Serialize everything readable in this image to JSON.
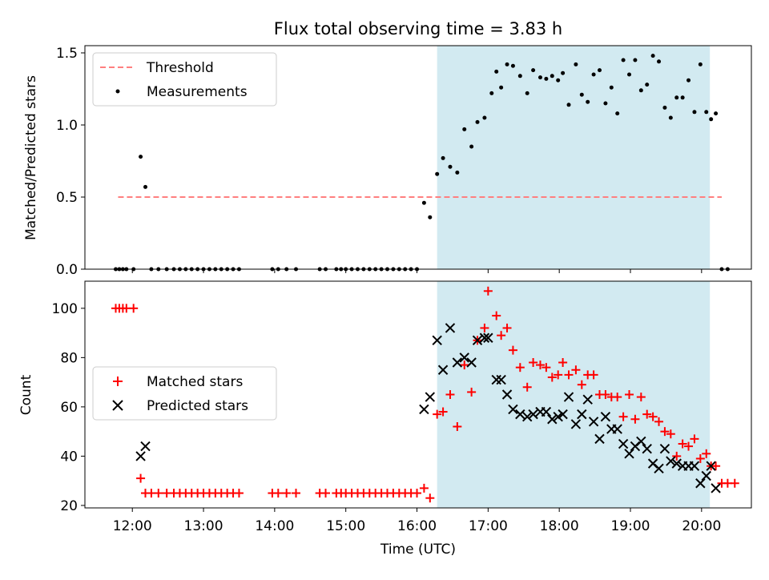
{
  "chart_data": [
    {
      "type": "scatter",
      "title": "Flux total observing time = 3.83 h",
      "xlabel": "",
      "ylabel": "Matched/Predicted stars",
      "xlim": [
        "11:20",
        "20:42"
      ],
      "ylim": [
        0,
        1.55
      ],
      "yticks": [
        "0.0",
        "0.5",
        "1.0",
        "1.5"
      ],
      "shaded_span": [
        "16:17",
        "20:07"
      ],
      "shaded_color": "#add8e6",
      "legend": {
        "placement": "upper-left",
        "entries": [
          "Threshold",
          "Measurements"
        ]
      },
      "threshold": {
        "name": "Threshold",
        "value": 0.5,
        "x_range": [
          "11:48",
          "20:17"
        ],
        "color": "#ff7f7f"
      },
      "series": [
        {
          "name": "Measurements",
          "color": "#000000",
          "points": [
            [
              "11:46",
              0
            ],
            [
              "11:49",
              0
            ],
            [
              "11:52",
              0
            ],
            [
              "11:55",
              0
            ],
            [
              "12:01",
              0
            ],
            [
              "12:07",
              0.78
            ],
            [
              "12:11",
              0.57
            ],
            [
              "12:16",
              0
            ],
            [
              "12:22",
              0
            ],
            [
              "12:29",
              0
            ],
            [
              "12:35",
              0
            ],
            [
              "12:40",
              0
            ],
            [
              "12:45",
              0
            ],
            [
              "12:50",
              0
            ],
            [
              "12:55",
              0
            ],
            [
              "13:00",
              0
            ],
            [
              "13:05",
              0
            ],
            [
              "13:10",
              0
            ],
            [
              "13:15",
              0
            ],
            [
              "13:20",
              0
            ],
            [
              "13:25",
              0
            ],
            [
              "13:30",
              0
            ],
            [
              "13:58",
              0
            ],
            [
              "14:03",
              0
            ],
            [
              "14:10",
              0
            ],
            [
              "14:18",
              0
            ],
            [
              "14:38",
              0
            ],
            [
              "14:43",
              0
            ],
            [
              "14:52",
              0
            ],
            [
              "14:56",
              0
            ],
            [
              "15:00",
              0
            ],
            [
              "15:05",
              0
            ],
            [
              "15:10",
              0
            ],
            [
              "15:15",
              0
            ],
            [
              "15:20",
              0
            ],
            [
              "15:25",
              0
            ],
            [
              "15:30",
              0
            ],
            [
              "15:35",
              0
            ],
            [
              "15:40",
              0
            ],
            [
              "15:45",
              0
            ],
            [
              "15:50",
              0
            ],
            [
              "15:55",
              0
            ],
            [
              "16:00",
              0
            ],
            [
              "16:06",
              0.46
            ],
            [
              "16:11",
              0.36
            ],
            [
              "16:17",
              0.66
            ],
            [
              "16:22",
              0.77
            ],
            [
              "16:28",
              0.71
            ],
            [
              "16:34",
              0.67
            ],
            [
              "16:40",
              0.97
            ],
            [
              "16:46",
              0.85
            ],
            [
              "16:51",
              1.02
            ],
            [
              "16:57",
              1.05
            ],
            [
              "17:03",
              1.22
            ],
            [
              "17:07",
              1.37
            ],
            [
              "17:11",
              1.26
            ],
            [
              "17:16",
              1.42
            ],
            [
              "17:21",
              1.41
            ],
            [
              "17:27",
              1.34
            ],
            [
              "17:33",
              1.22
            ],
            [
              "17:38",
              1.38
            ],
            [
              "17:44",
              1.33
            ],
            [
              "17:49",
              1.32
            ],
            [
              "17:54",
              1.34
            ],
            [
              "17:59",
              1.31
            ],
            [
              "18:03",
              1.36
            ],
            [
              "18:08",
              1.14
            ],
            [
              "18:14",
              1.42
            ],
            [
              "18:19",
              1.21
            ],
            [
              "18:24",
              1.16
            ],
            [
              "18:29",
              1.35
            ],
            [
              "18:34",
              1.38
            ],
            [
              "18:39",
              1.15
            ],
            [
              "18:44",
              1.26
            ],
            [
              "18:49",
              1.08
            ],
            [
              "18:54",
              1.45
            ],
            [
              "18:59",
              1.35
            ],
            [
              "19:04",
              1.45
            ],
            [
              "19:09",
              1.24
            ],
            [
              "19:14",
              1.28
            ],
            [
              "19:19",
              1.48
            ],
            [
              "19:24",
              1.44
            ],
            [
              "19:29",
              1.12
            ],
            [
              "19:34",
              1.05
            ],
            [
              "19:39",
              1.19
            ],
            [
              "19:44",
              1.19
            ],
            [
              "19:49",
              1.31
            ],
            [
              "19:54",
              1.09
            ],
            [
              "19:59",
              1.42
            ],
            [
              "20:04",
              1.09
            ],
            [
              "20:08",
              1.04
            ],
            [
              "20:12",
              1.08
            ],
            [
              "20:17",
              0
            ],
            [
              "20:22",
              0
            ]
          ]
        }
      ]
    },
    {
      "type": "scatter",
      "title": "",
      "xlabel": "Time (UTC)",
      "ylabel": "Count",
      "xlim": [
        "11:20",
        "20:42"
      ],
      "ylim": [
        19,
        111
      ],
      "yticks": [
        "20",
        "40",
        "60",
        "80",
        "100"
      ],
      "xticks": [
        "12:00",
        "13:00",
        "14:00",
        "15:00",
        "16:00",
        "17:00",
        "18:00",
        "19:00",
        "20:00"
      ],
      "shaded_span": [
        "16:17",
        "20:07"
      ],
      "shaded_color": "#add8e6",
      "legend": {
        "placement": "center-left",
        "entries": [
          "Matched stars",
          "Predicted stars"
        ]
      },
      "series": [
        {
          "name": "Matched stars",
          "marker": "+",
          "color": "#ff0000",
          "points": [
            [
              "11:46",
              100
            ],
            [
              "11:49",
              100
            ],
            [
              "11:52",
              100
            ],
            [
              "11:55",
              100
            ],
            [
              "12:01",
              100
            ],
            [
              "12:07",
              31
            ],
            [
              "12:11",
              25
            ],
            [
              "12:16",
              25
            ],
            [
              "12:22",
              25
            ],
            [
              "12:29",
              25
            ],
            [
              "12:35",
              25
            ],
            [
              "12:40",
              25
            ],
            [
              "12:45",
              25
            ],
            [
              "12:50",
              25
            ],
            [
              "12:55",
              25
            ],
            [
              "13:00",
              25
            ],
            [
              "13:05",
              25
            ],
            [
              "13:10",
              25
            ],
            [
              "13:15",
              25
            ],
            [
              "13:20",
              25
            ],
            [
              "13:25",
              25
            ],
            [
              "13:30",
              25
            ],
            [
              "13:58",
              25
            ],
            [
              "14:03",
              25
            ],
            [
              "14:10",
              25
            ],
            [
              "14:18",
              25
            ],
            [
              "14:38",
              25
            ],
            [
              "14:43",
              25
            ],
            [
              "14:52",
              25
            ],
            [
              "14:56",
              25
            ],
            [
              "15:00",
              25
            ],
            [
              "15:05",
              25
            ],
            [
              "15:10",
              25
            ],
            [
              "15:15",
              25
            ],
            [
              "15:20",
              25
            ],
            [
              "15:25",
              25
            ],
            [
              "15:30",
              25
            ],
            [
              "15:35",
              25
            ],
            [
              "15:40",
              25
            ],
            [
              "15:45",
              25
            ],
            [
              "15:50",
              25
            ],
            [
              "15:55",
              25
            ],
            [
              "16:00",
              25
            ],
            [
              "16:06",
              27
            ],
            [
              "16:11",
              23
            ],
            [
              "16:17",
              57
            ],
            [
              "16:22",
              58
            ],
            [
              "16:28",
              65
            ],
            [
              "16:34",
              52
            ],
            [
              "16:40",
              77
            ],
            [
              "16:46",
              66
            ],
            [
              "16:51",
              87
            ],
            [
              "16:57",
              92
            ],
            [
              "17:00",
              107
            ],
            [
              "17:07",
              97
            ],
            [
              "17:11",
              89
            ],
            [
              "17:16",
              92
            ],
            [
              "17:21",
              83
            ],
            [
              "17:27",
              76
            ],
            [
              "17:33",
              68
            ],
            [
              "17:38",
              78
            ],
            [
              "17:44",
              77
            ],
            [
              "17:49",
              76
            ],
            [
              "17:54",
              72
            ],
            [
              "17:59",
              73
            ],
            [
              "18:03",
              78
            ],
            [
              "18:08",
              73
            ],
            [
              "18:14",
              75
            ],
            [
              "18:19",
              69
            ],
            [
              "18:24",
              73
            ],
            [
              "18:29",
              73
            ],
            [
              "18:34",
              65
            ],
            [
              "18:39",
              65
            ],
            [
              "18:44",
              64
            ],
            [
              "18:49",
              64
            ],
            [
              "18:54",
              56
            ],
            [
              "18:59",
              65
            ],
            [
              "19:04",
              55
            ],
            [
              "19:09",
              64
            ],
            [
              "19:14",
              57
            ],
            [
              "19:19",
              56
            ],
            [
              "19:24",
              54
            ],
            [
              "19:29",
              50
            ],
            [
              "19:34",
              49
            ],
            [
              "19:39",
              40
            ],
            [
              "19:44",
              45
            ],
            [
              "19:49",
              44
            ],
            [
              "19:54",
              47
            ],
            [
              "19:59",
              39
            ],
            [
              "20:04",
              41
            ],
            [
              "20:08",
              36
            ],
            [
              "20:12",
              36
            ],
            [
              "20:17",
              29
            ],
            [
              "20:22",
              29
            ],
            [
              "20:28",
              29
            ]
          ]
        },
        {
          "name": "Predicted stars",
          "marker": "x",
          "color": "#000000",
          "points": [
            [
              "12:07",
              40
            ],
            [
              "12:11",
              44
            ],
            [
              "16:06",
              59
            ],
            [
              "16:11",
              64
            ],
            [
              "16:17",
              87
            ],
            [
              "16:22",
              75
            ],
            [
              "16:28",
              92
            ],
            [
              "16:34",
              78
            ],
            [
              "16:40",
              80
            ],
            [
              "16:46",
              78
            ],
            [
              "16:51",
              87
            ],
            [
              "16:57",
              88
            ],
            [
              "17:00",
              88
            ],
            [
              "17:07",
              71
            ],
            [
              "17:11",
              71
            ],
            [
              "17:16",
              65
            ],
            [
              "17:21",
              59
            ],
            [
              "17:27",
              57
            ],
            [
              "17:33",
              56
            ],
            [
              "17:38",
              57
            ],
            [
              "17:44",
              58
            ],
            [
              "17:49",
              58
            ],
            [
              "17:54",
              55
            ],
            [
              "17:59",
              56
            ],
            [
              "18:03",
              57
            ],
            [
              "18:08",
              64
            ],
            [
              "18:14",
              53
            ],
            [
              "18:19",
              57
            ],
            [
              "18:24",
              63
            ],
            [
              "18:29",
              54
            ],
            [
              "18:34",
              47
            ],
            [
              "18:39",
              56
            ],
            [
              "18:44",
              51
            ],
            [
              "18:49",
              51
            ],
            [
              "18:54",
              45
            ],
            [
              "18:59",
              41
            ],
            [
              "19:04",
              44
            ],
            [
              "19:09",
              46
            ],
            [
              "19:14",
              43
            ],
            [
              "19:19",
              37
            ],
            [
              "19:24",
              35
            ],
            [
              "19:29",
              43
            ],
            [
              "19:34",
              38
            ],
            [
              "19:39",
              37
            ],
            [
              "19:44",
              36
            ],
            [
              "19:49",
              36
            ],
            [
              "19:54",
              36
            ],
            [
              "19:59",
              29
            ],
            [
              "20:04",
              32
            ],
            [
              "20:08",
              36
            ],
            [
              "20:12",
              27
            ]
          ]
        }
      ]
    }
  ]
}
